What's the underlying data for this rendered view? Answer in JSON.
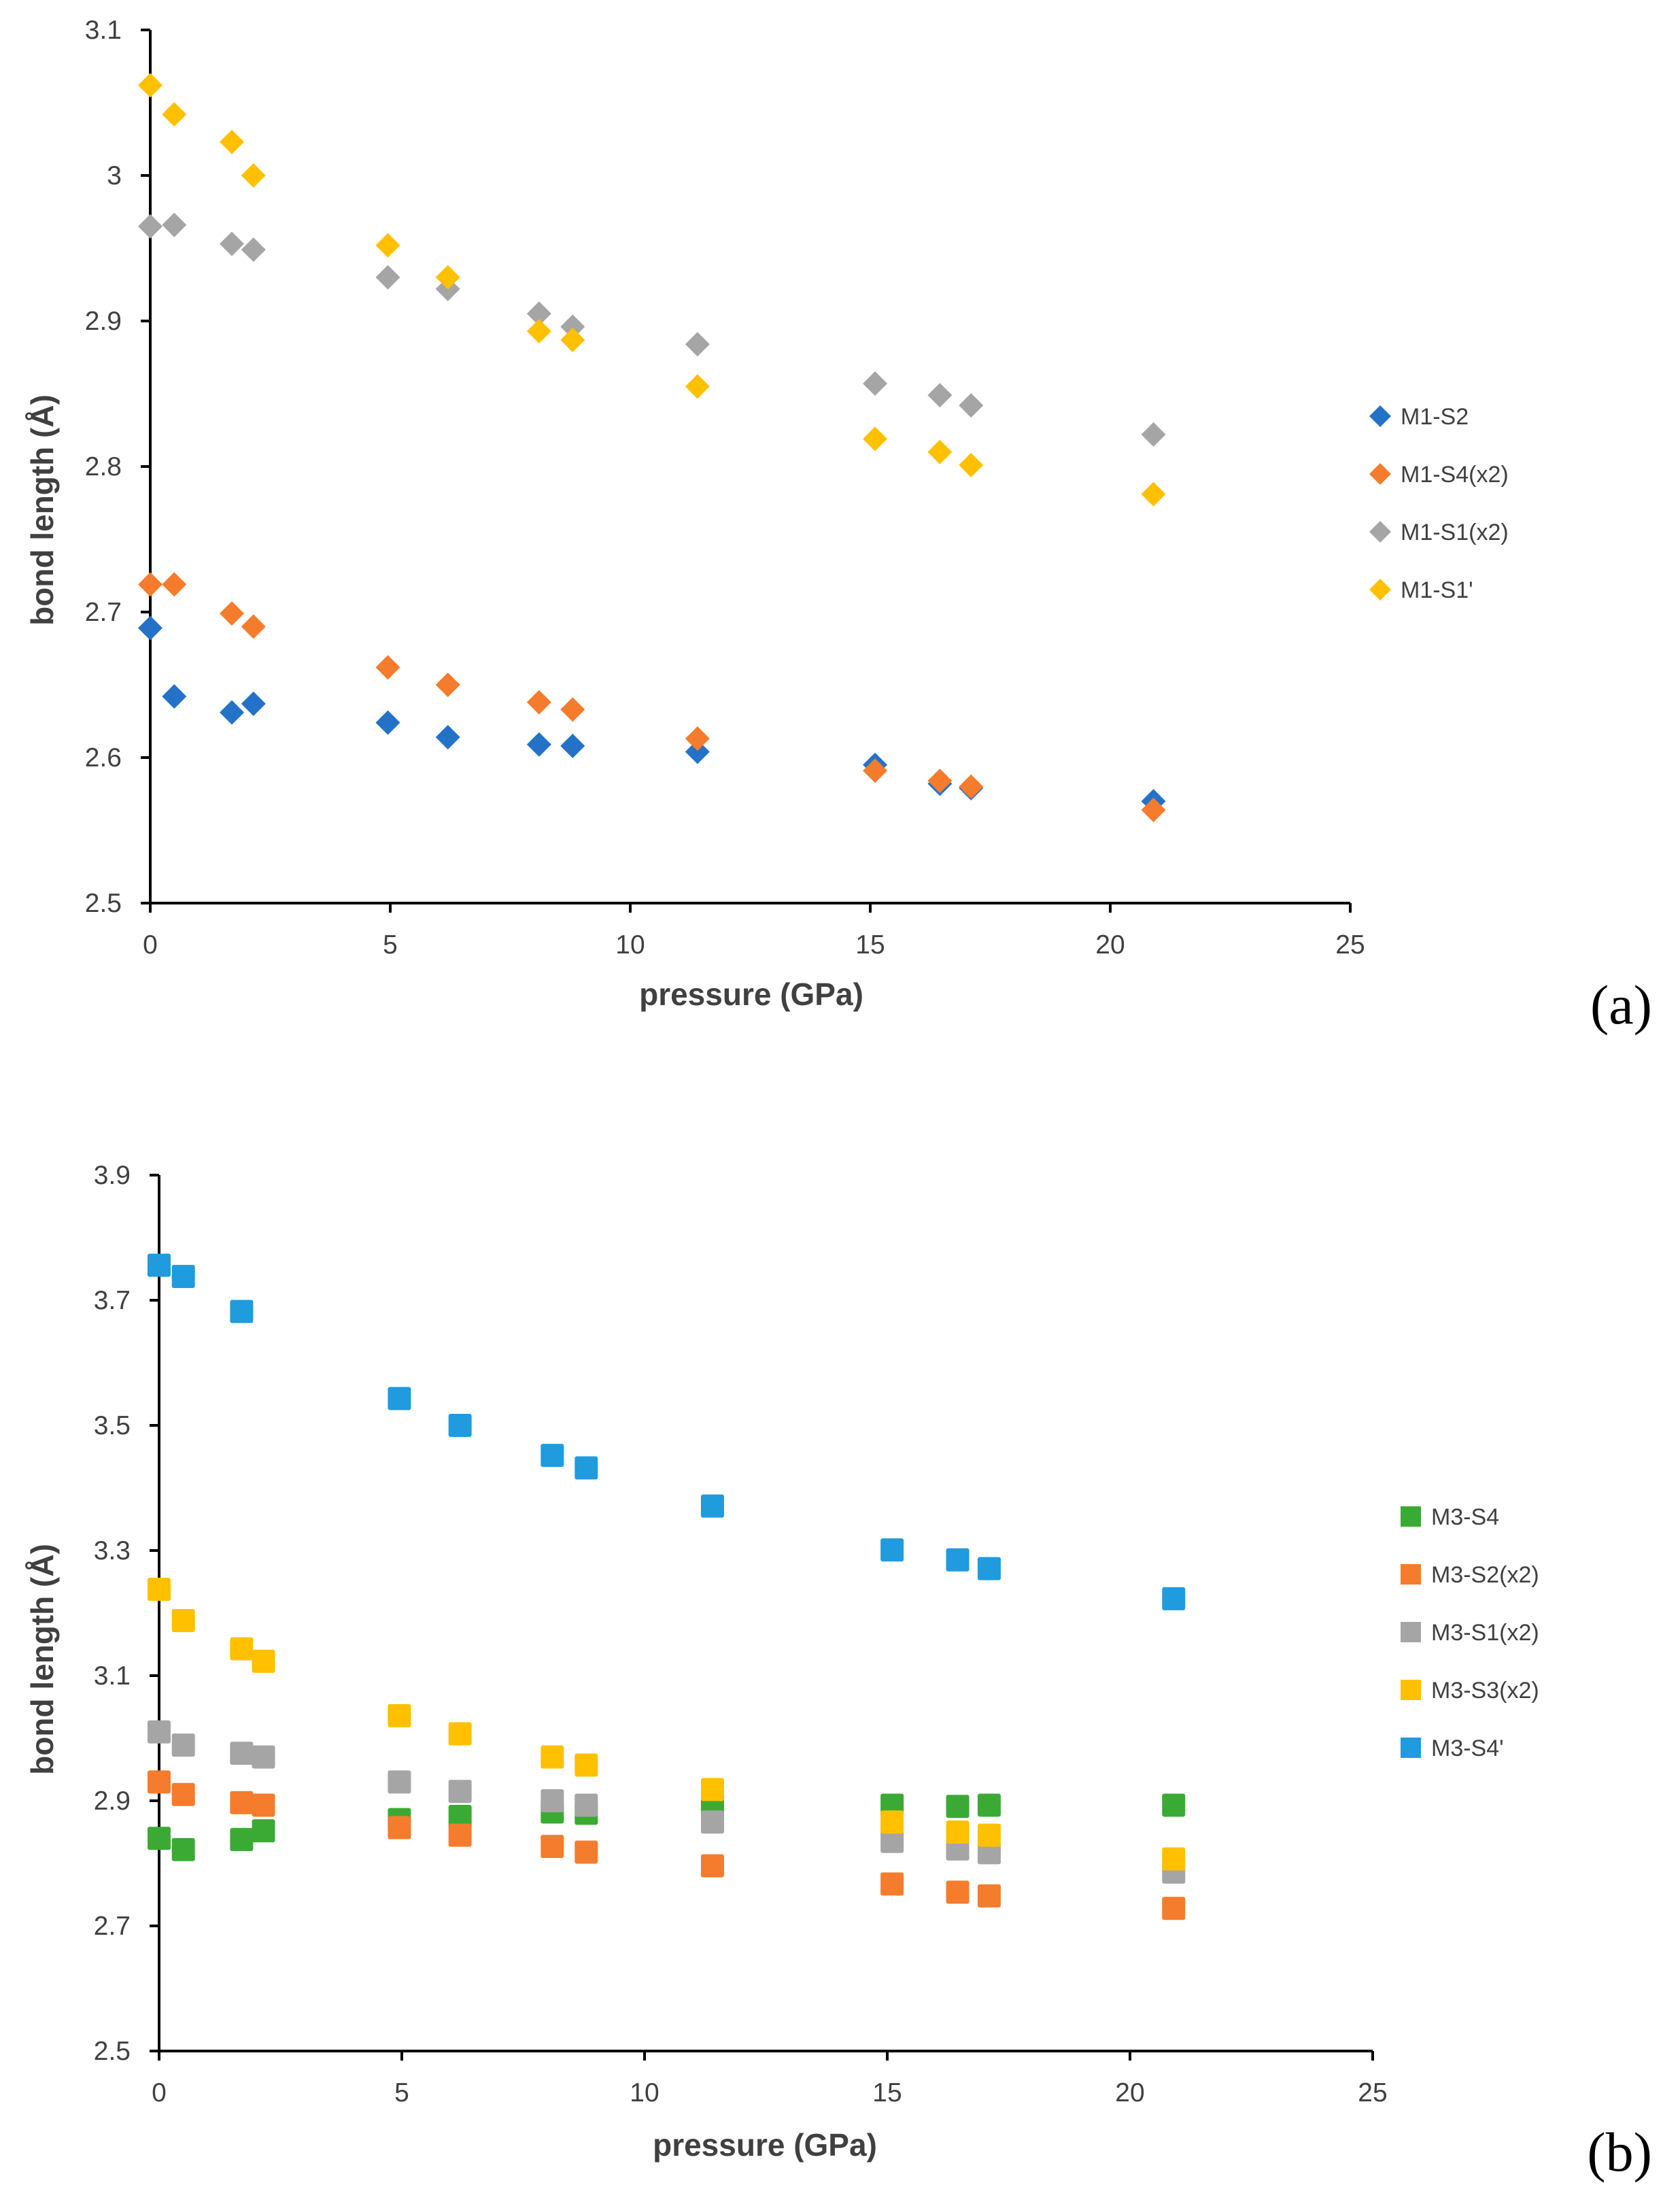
{
  "chart_data": [
    {
      "type": "scatter",
      "panel_label": "(a)",
      "xlabel": "pressure (GPa)",
      "ylabel": "bond length (Å)",
      "xlim": [
        0,
        25
      ],
      "ylim": [
        2.5,
        3.1
      ],
      "xticks": [
        "0",
        "5",
        "10",
        "15",
        "20",
        "25"
      ],
      "yticks": [
        "2.5",
        "2.6",
        "2.7",
        "2.8",
        "2.9",
        "3",
        "3.1"
      ],
      "grid": false,
      "legend_position": "right",
      "series": [
        {
          "name": "M1-S2",
          "marker": "diamond",
          "color": "#2472C8",
          "x": [
            0,
            0.5,
            1.7,
            2.15,
            4.95,
            6.2,
            8.1,
            8.8,
            11.4,
            15.1,
            16.45,
            17.1,
            20.9
          ],
          "y": [
            2.689,
            2.642,
            2.631,
            2.637,
            2.624,
            2.614,
            2.609,
            2.608,
            2.604,
            2.595,
            2.582,
            2.579,
            2.57
          ]
        },
        {
          "name": "M1-S4(x2)",
          "marker": "diamond",
          "color": "#F47C2C",
          "x": [
            0,
            0.5,
            1.7,
            2.15,
            4.95,
            6.2,
            8.1,
            8.8,
            11.4,
            15.1,
            16.45,
            17.1,
            20.9
          ],
          "y": [
            2.719,
            2.719,
            2.699,
            2.69,
            2.662,
            2.65,
            2.638,
            2.633,
            2.613,
            2.591,
            2.584,
            2.58,
            2.564
          ]
        },
        {
          "name": "M1-S1(x2)",
          "marker": "diamond",
          "color": "#A5A5A5",
          "x": [
            0,
            0.5,
            1.7,
            2.15,
            4.95,
            6.2,
            8.1,
            8.8,
            11.4,
            15.1,
            16.45,
            17.1,
            20.9
          ],
          "y": [
            2.965,
            2.966,
            2.953,
            2.949,
            2.93,
            2.922,
            2.905,
            2.896,
            2.884,
            2.857,
            2.849,
            2.842,
            2.822
          ]
        },
        {
          "name": "M1-S1'",
          "marker": "diamond",
          "color": "#FFC000",
          "x": [
            0,
            0.5,
            1.7,
            2.15,
            4.95,
            6.2,
            8.1,
            8.8,
            11.4,
            15.1,
            16.45,
            17.1,
            20.9
          ],
          "y": [
            3.062,
            3.042,
            3.023,
            3.0,
            2.952,
            2.93,
            2.893,
            2.887,
            2.855,
            2.819,
            2.81,
            2.801,
            2.781
          ]
        }
      ]
    },
    {
      "type": "scatter",
      "panel_label": "(b)",
      "xlabel": "pressure (GPa)",
      "ylabel": "bond length (Å)",
      "xlim": [
        0,
        25
      ],
      "ylim": [
        2.5,
        3.9
      ],
      "xticks": [
        "0",
        "5",
        "10",
        "15",
        "20",
        "25"
      ],
      "yticks": [
        "2.5",
        "2.7",
        "2.9",
        "3.1",
        "3.3",
        "3.5",
        "3.7",
        "3.9"
      ],
      "grid": false,
      "legend_position": "right",
      "series": [
        {
          "name": "M3-S4",
          "marker": "square",
          "color": "#3BAA35",
          "x": [
            0,
            0.5,
            1.7,
            2.15,
            4.95,
            6.2,
            8.1,
            8.8,
            11.4,
            15.1,
            16.45,
            17.1,
            20.9
          ],
          "y": [
            2.84,
            2.822,
            2.838,
            2.852,
            2.87,
            2.875,
            2.882,
            2.88,
            2.89,
            2.893,
            2.891,
            2.893,
            2.893
          ]
        },
        {
          "name": "M3-S2(x2)",
          "marker": "square",
          "color": "#F47C2C",
          "x": [
            0,
            0.5,
            1.7,
            2.15,
            4.95,
            6.2,
            8.1,
            8.8,
            11.4,
            15.1,
            16.45,
            17.1,
            20.9
          ],
          "y": [
            2.93,
            2.91,
            2.897,
            2.893,
            2.857,
            2.845,
            2.827,
            2.818,
            2.796,
            2.767,
            2.754,
            2.748,
            2.728
          ]
        },
        {
          "name": "M3-S1(x2)",
          "marker": "square",
          "color": "#A5A5A5",
          "x": [
            0,
            0.5,
            1.7,
            2.15,
            4.95,
            6.2,
            8.1,
            8.8,
            11.4,
            15.1,
            16.45,
            17.1,
            20.9
          ],
          "y": [
            3.01,
            2.989,
            2.976,
            2.97,
            2.93,
            2.915,
            2.9,
            2.893,
            2.866,
            2.835,
            2.823,
            2.817,
            2.786
          ]
        },
        {
          "name": "M3-S3(x2)",
          "marker": "square",
          "color": "#FFC000",
          "x": [
            0,
            0.5,
            1.7,
            2.15,
            4.95,
            6.2,
            8.1,
            8.8,
            11.4,
            15.1,
            16.45,
            17.1,
            20.9
          ],
          "y": [
            3.238,
            3.188,
            3.143,
            3.123,
            3.036,
            3.007,
            2.97,
            2.957,
            2.918,
            2.866,
            2.85,
            2.845,
            2.807
          ]
        },
        {
          "name": "M3-S4'",
          "marker": "square",
          "color": "#1F9BDE",
          "x": [
            0,
            0.5,
            1.7,
            2.15,
            4.95,
            6.2,
            8.1,
            8.8,
            11.4,
            15.1,
            16.45,
            17.1,
            20.9
          ],
          "y": [
            3.756,
            3.738,
            3.682,
            null,
            3.543,
            3.5,
            3.452,
            3.432,
            3.371,
            3.301,
            3.285,
            3.271,
            3.223
          ]
        }
      ]
    }
  ]
}
